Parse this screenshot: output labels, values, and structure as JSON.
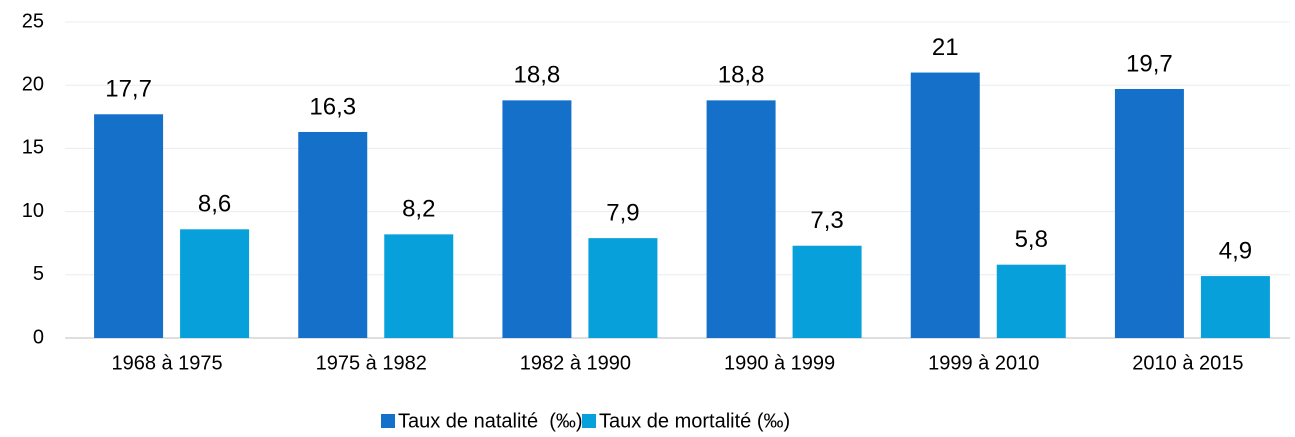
{
  "chart_data": {
    "type": "bar",
    "categories": [
      "1968 à 1975",
      "1975 à 1982",
      "1982 à 1990",
      "1990 à 1999",
      "1999 à 2010",
      "2010 à 2015"
    ],
    "series": [
      {
        "name": "Taux de natalité  (‰)",
        "color": "#1470c8",
        "values": [
          17.7,
          16.3,
          18.8,
          18.8,
          21,
          19.7
        ],
        "value_labels": [
          "17,7",
          "16,3",
          "18,8",
          "18,8",
          "21",
          "19,7"
        ]
      },
      {
        "name": "Taux de mortalité (‰)",
        "color": "#08a0da",
        "values": [
          8.6,
          8.2,
          7.9,
          7.3,
          5.8,
          4.9
        ],
        "value_labels": [
          "8,6",
          "8,2",
          "7,9",
          "7,3",
          "5,8",
          "4,9"
        ]
      }
    ],
    "ylim": [
      0,
      25
    ],
    "yticks": [
      0,
      5,
      10,
      15,
      20,
      25
    ],
    "grid": true,
    "legend": "bottom"
  }
}
